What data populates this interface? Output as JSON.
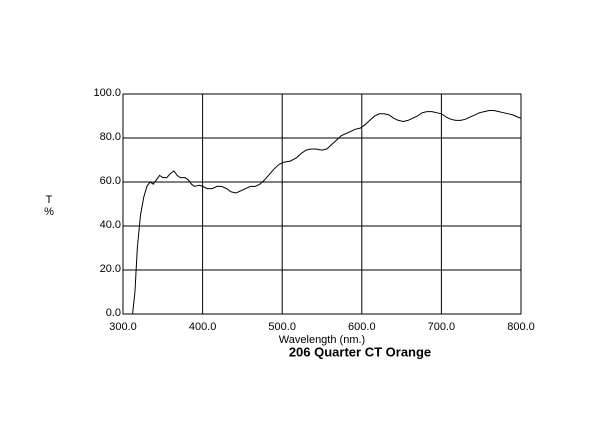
{
  "chart_data": {
    "type": "line",
    "title": "206 Quarter CT Orange",
    "xlabel": "Wavelength (nm.)",
    "ylabel": [
      "T",
      "%"
    ],
    "xlim": [
      300,
      800
    ],
    "ylim": [
      0,
      100
    ],
    "xticks": [
      {
        "value": 300,
        "label": "300.0"
      },
      {
        "value": 400,
        "label": "400.0"
      },
      {
        "value": 500,
        "label": "500.0"
      },
      {
        "value": 600,
        "label": "600.0"
      },
      {
        "value": 700,
        "label": "700.0"
      },
      {
        "value": 800,
        "label": "800.0"
      }
    ],
    "yticks": [
      {
        "value": 0,
        "label": "0.0"
      },
      {
        "value": 20,
        "label": "20.0"
      },
      {
        "value": 40,
        "label": "40.0"
      },
      {
        "value": 60,
        "label": "60.0"
      },
      {
        "value": 80,
        "label": "80.0"
      },
      {
        "value": 100,
        "label": "100.0"
      }
    ],
    "grid": true,
    "x": [
      310,
      312,
      315,
      318,
      322,
      326,
      330,
      334,
      338,
      342,
      346,
      350,
      355,
      360,
      364,
      368,
      372,
      378,
      382,
      386,
      390,
      396,
      400,
      406,
      412,
      418,
      424,
      430,
      436,
      442,
      448,
      454,
      460,
      466,
      472,
      478,
      484,
      490,
      496,
      502,
      510,
      518,
      524,
      530,
      536,
      542,
      550,
      556,
      562,
      568,
      574,
      580,
      586,
      592,
      598,
      604,
      610,
      616,
      622,
      628,
      634,
      640,
      646,
      652,
      658,
      664,
      670,
      676,
      682,
      688,
      694,
      700,
      706,
      712,
      718,
      724,
      730,
      736,
      742,
      748,
      754,
      760,
      766,
      772,
      778,
      784,
      790,
      796,
      800
    ],
    "series": [
      {
        "color": "#000000",
        "values": [
          0,
          0,
          10,
          30,
          45,
          53,
          58,
          60,
          59,
          61,
          63,
          62,
          62,
          64,
          65,
          63,
          62,
          62,
          61,
          59,
          58,
          58.5,
          58,
          57,
          57,
          58,
          58,
          57,
          55.5,
          55,
          56,
          57,
          58,
          58,
          59,
          61,
          63.5,
          66,
          68,
          69,
          69.5,
          71,
          73,
          74.5,
          75,
          75,
          74.5,
          75,
          77,
          79,
          81,
          82,
          83,
          84,
          84.5,
          86,
          88,
          90,
          91,
          91,
          90.5,
          89,
          88,
          87.5,
          88,
          89,
          90,
          91.5,
          92,
          92,
          91.5,
          91,
          89.5,
          88.5,
          88,
          88,
          88.5,
          89.5,
          90.5,
          91.5,
          92,
          92.5,
          92.5,
          92,
          91.5,
          91,
          90.5,
          89.5,
          89
        ]
      }
    ]
  }
}
